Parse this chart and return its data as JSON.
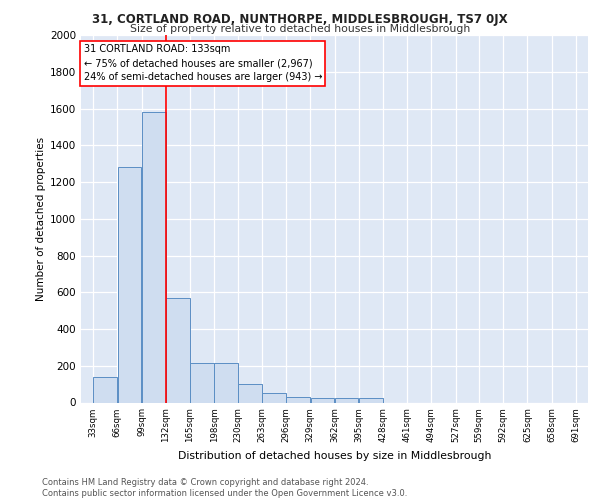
{
  "title1": "31, CORTLAND ROAD, NUNTHORPE, MIDDLESBROUGH, TS7 0JX",
  "title2": "Size of property relative to detached houses in Middlesbrough",
  "xlabel": "Distribution of detached houses by size in Middlesbrough",
  "ylabel": "Number of detached properties",
  "bar_color": "#cfddf0",
  "bar_edge_color": "#5b8ec4",
  "bg_color": "#dfe8f5",
  "grid_color": "#ffffff",
  "red_line_x": 133,
  "annotation_text": "31 CORTLAND ROAD: 133sqm\n← 75% of detached houses are smaller (2,967)\n24% of semi-detached houses are larger (943) →",
  "footer": "Contains HM Land Registry data © Crown copyright and database right 2024.\nContains public sector information licensed under the Open Government Licence v3.0.",
  "bin_edges": [
    33,
    66,
    99,
    132,
    165,
    198,
    230,
    263,
    296,
    329,
    362,
    395,
    428,
    461,
    494,
    527,
    559,
    592,
    625,
    658,
    691
  ],
  "bin_heights": [
    140,
    1280,
    1580,
    570,
    215,
    215,
    100,
    50,
    28,
    22,
    22,
    22,
    0,
    0,
    0,
    0,
    0,
    0,
    0,
    0
  ],
  "ylim": [
    0,
    2000
  ],
  "yticks": [
    0,
    200,
    400,
    600,
    800,
    1000,
    1200,
    1400,
    1600,
    1800,
    2000
  ]
}
